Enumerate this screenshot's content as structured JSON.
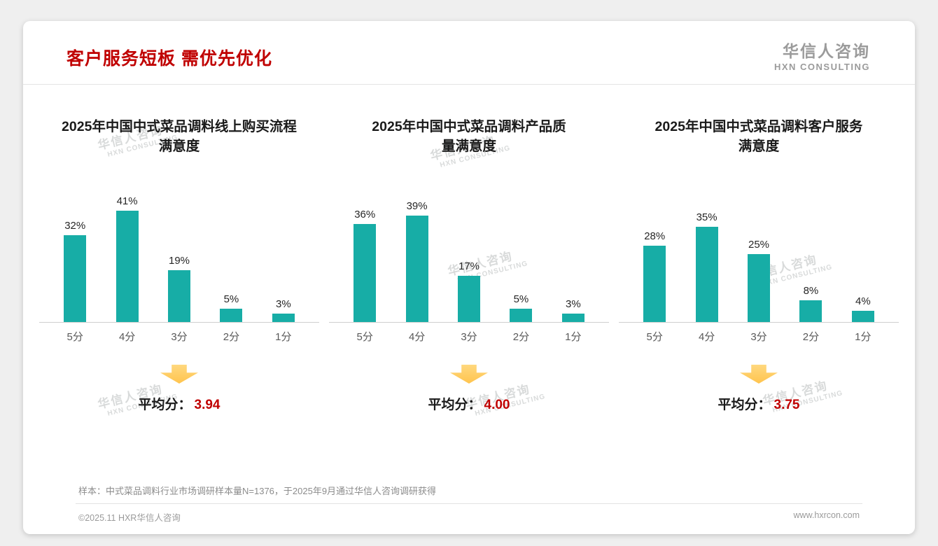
{
  "page": {
    "title": "客户服务短板 需优先优化",
    "logo": {
      "name": "华信人咨询",
      "tagline": "HXN CONSULTING"
    },
    "watermark": {
      "line1": "华信人咨询",
      "line2": "HXN CONSULTING"
    },
    "footnote": "样本：中式菜品调料行业市场调研样本量N=1376，于2025年9月通过华信人咨询调研获得",
    "footer": {
      "left": "©2025.11 HXR华信人咨询",
      "right": "www.hxrcon.com"
    }
  },
  "colors": {
    "bar_teal": "#17ada6",
    "title_red": "#c00000",
    "average_red": "#c00000",
    "arrow_yellow": "#ffc44e"
  },
  "chart_data": [
    {
      "type": "bar",
      "title": "2025年中国中式菜品调料线上购买流程满意度",
      "title_lines": [
        "2025年中国中式菜品调料线上购买流程",
        "满意度"
      ],
      "categories": [
        "5分",
        "4分",
        "3分",
        "2分",
        "1分"
      ],
      "values": [
        32,
        41,
        19,
        5,
        3
      ],
      "unit": "%",
      "ylim": [
        0,
        45
      ],
      "grid": false,
      "average": {
        "label": "平均分：",
        "value": "3.94"
      }
    },
    {
      "type": "bar",
      "title": "2025年中国中式菜品调料产品质量满意度",
      "title_lines": [
        "2025年中国中式菜品调料产品质",
        "量满意度"
      ],
      "categories": [
        "5分",
        "4分",
        "3分",
        "2分",
        "1分"
      ],
      "values": [
        36,
        39,
        17,
        5,
        3
      ],
      "unit": "%",
      "ylim": [
        0,
        45
      ],
      "grid": false,
      "average": {
        "label": "平均分：",
        "value": "4.00"
      }
    },
    {
      "type": "bar",
      "title": "2025年中国中式菜品调料客户服务满意度",
      "title_lines": [
        "2025年中国中式菜品调料客户服务",
        "满意度"
      ],
      "categories": [
        "5分",
        "4分",
        "3分",
        "2分",
        "1分"
      ],
      "values": [
        28,
        35,
        25,
        8,
        4
      ],
      "unit": "%",
      "ylim": [
        0,
        45
      ],
      "grid": false,
      "average": {
        "label": "平均分：",
        "value": "3.75"
      }
    }
  ]
}
